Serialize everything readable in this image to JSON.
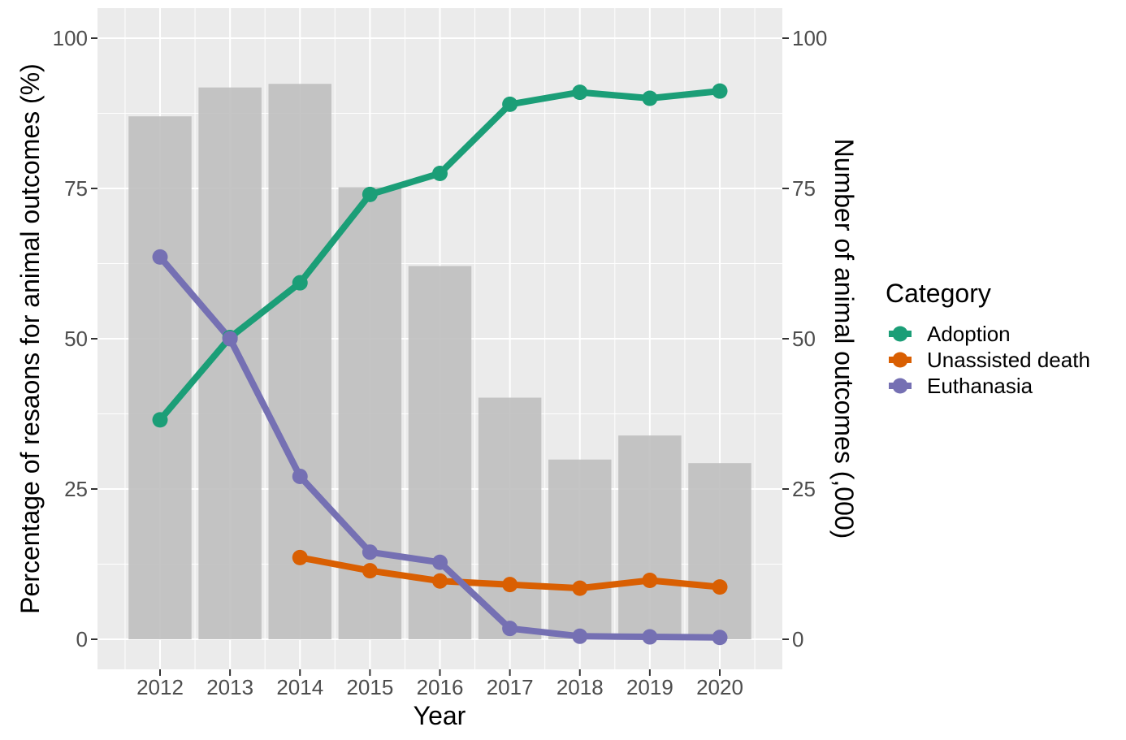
{
  "chart_data": {
    "type": "bar+line",
    "title": "",
    "categories": [
      "2012",
      "2013",
      "2014",
      "2015",
      "2016",
      "2017",
      "2018",
      "2019",
      "2020"
    ],
    "bars": {
      "name": "Number of animal outcomes (,000)",
      "axis": "right",
      "values": [
        87,
        91.8,
        92.4,
        75.2,
        62.1,
        40.2,
        29.9,
        33.9,
        29.3
      ],
      "color": "#bfbfbf"
    },
    "series": [
      {
        "name": "Adoption",
        "color": "#1b9e77",
        "values": [
          36.5,
          50.2,
          59.3,
          74,
          77.5,
          89,
          91,
          90,
          91.2
        ]
      },
      {
        "name": "Unassisted death",
        "color": "#d95f02",
        "values": [
          null,
          null,
          13.6,
          11.4,
          9.7,
          9.1,
          8.5,
          9.8,
          8.7
        ]
      },
      {
        "name": "Euthanasia",
        "color": "#7570b3",
        "values": [
          63.6,
          50,
          27.1,
          14.5,
          12.8,
          1.8,
          0.5,
          0.4,
          0.3
        ]
      }
    ],
    "xlabel": "Year",
    "ylabel": "Percentage of resaons for animal outcomes (%)",
    "y2label": "Number of animal outcomes (,000)",
    "ylim": [
      -5,
      105
    ],
    "y2lim": [
      -5,
      105
    ],
    "yticks": [
      0,
      25,
      50,
      75,
      100
    ],
    "y2ticks": [
      0,
      25,
      50,
      75,
      100
    ],
    "grid": true,
    "panel_background": "#ebebeb",
    "legend": {
      "title": "Category",
      "position": "right",
      "entries": [
        "Adoption",
        "Unassisted death",
        "Euthanasia"
      ]
    }
  }
}
